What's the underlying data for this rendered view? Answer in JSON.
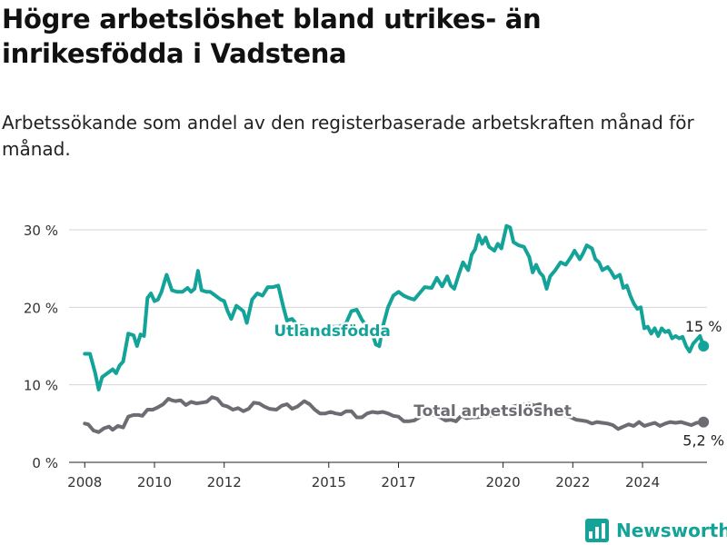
{
  "header": {
    "title": "Högre arbetslöshet bland utrikes- än inrikesfödda i Vadstena",
    "subtitle": "Arbetssökande som andel av den registerbaserade arbetskraften månad för månad."
  },
  "brand": {
    "name": "Newsworthy",
    "icon": "bar-chart-logo-icon",
    "color": "#13a398"
  },
  "chart_data": {
    "type": "line",
    "title": "Högre arbetslöshet bland utrikes- än inrikesfödda i Vadstena",
    "subtitle": "Arbetssökande som andel av den registerbaserade arbetskraften månad för månad.",
    "xlabel": "",
    "ylabel": "",
    "xlim": [
      2007.55,
      2025.85
    ],
    "ylim": [
      0,
      30
    ],
    "y_ticks": [
      0,
      10,
      20,
      30
    ],
    "y_tick_labels": [
      "0 %",
      "10 %",
      "20 %",
      "30 %"
    ],
    "x_ticks": [
      2008,
      2010,
      2012,
      2015,
      2017,
      2020,
      2022,
      2024
    ],
    "x_tick_labels": [
      "2008",
      "2010",
      "2012",
      "2015",
      "2017",
      "2020",
      "2022",
      "2024"
    ],
    "grid": true,
    "legend": "inline labels",
    "series": [
      {
        "name": "Utlandsfödda",
        "color": "#13a398",
        "end_label": "15 %",
        "points": [
          [
            2008.0,
            14.0
          ],
          [
            2008.15,
            14.0
          ],
          [
            2008.3,
            11.5
          ],
          [
            2008.4,
            9.4
          ],
          [
            2008.5,
            11.0
          ],
          [
            2008.65,
            11.5
          ],
          [
            2008.8,
            12.0
          ],
          [
            2008.9,
            11.5
          ],
          [
            2009.0,
            12.5
          ],
          [
            2009.1,
            13.0
          ],
          [
            2009.25,
            16.6
          ],
          [
            2009.4,
            16.4
          ],
          [
            2009.5,
            15.0
          ],
          [
            2009.6,
            16.5
          ],
          [
            2009.7,
            16.3
          ],
          [
            2009.8,
            21.2
          ],
          [
            2009.9,
            21.8
          ],
          [
            2010.0,
            20.8
          ],
          [
            2010.1,
            21.0
          ],
          [
            2010.2,
            22.0
          ],
          [
            2010.3,
            23.5
          ],
          [
            2010.35,
            24.2
          ],
          [
            2010.5,
            22.2
          ],
          [
            2010.65,
            22.0
          ],
          [
            2010.8,
            22.0
          ],
          [
            2010.95,
            22.5
          ],
          [
            2011.05,
            22.0
          ],
          [
            2011.15,
            22.4
          ],
          [
            2011.25,
            24.7
          ],
          [
            2011.35,
            22.2
          ],
          [
            2011.5,
            22.0
          ],
          [
            2011.6,
            22.0
          ],
          [
            2011.75,
            21.5
          ],
          [
            2011.9,
            21.0
          ],
          [
            2012.0,
            20.8
          ],
          [
            2012.1,
            19.5
          ],
          [
            2012.2,
            18.5
          ],
          [
            2012.35,
            20.2
          ],
          [
            2012.55,
            19.5
          ],
          [
            2012.65,
            18.0
          ],
          [
            2012.8,
            21.0
          ],
          [
            2012.95,
            21.8
          ],
          [
            2013.1,
            21.5
          ],
          [
            2013.25,
            22.6
          ],
          [
            2013.4,
            22.6
          ],
          [
            2013.55,
            22.8
          ],
          [
            2013.7,
            20.0
          ],
          [
            2013.8,
            18.3
          ],
          [
            2013.95,
            18.5
          ],
          [
            2014.1,
            17.7
          ],
          [
            2014.3,
            17.5
          ],
          [
            2014.5,
            17.0
          ],
          [
            2014.7,
            16.5
          ],
          [
            2014.9,
            17.0
          ],
          [
            2015.1,
            17.5
          ],
          [
            2015.3,
            17.5
          ],
          [
            2015.5,
            18.0
          ],
          [
            2015.65,
            19.5
          ],
          [
            2015.8,
            19.7
          ],
          [
            2015.95,
            18.4
          ],
          [
            2016.1,
            17.5
          ],
          [
            2016.25,
            16.6
          ],
          [
            2016.35,
            15.2
          ],
          [
            2016.45,
            15.0
          ],
          [
            2016.55,
            17.5
          ],
          [
            2016.7,
            20.0
          ],
          [
            2016.85,
            21.5
          ],
          [
            2017.0,
            22.0
          ],
          [
            2017.15,
            21.5
          ],
          [
            2017.3,
            21.2
          ],
          [
            2017.45,
            21.0
          ],
          [
            2017.6,
            21.8
          ],
          [
            2017.75,
            22.6
          ],
          [
            2017.95,
            22.5
          ],
          [
            2018.1,
            23.8
          ],
          [
            2018.25,
            22.7
          ],
          [
            2018.4,
            24.0
          ],
          [
            2018.5,
            22.8
          ],
          [
            2018.6,
            22.4
          ],
          [
            2018.75,
            24.5
          ],
          [
            2018.85,
            25.8
          ],
          [
            2019.0,
            24.8
          ],
          [
            2019.1,
            26.8
          ],
          [
            2019.2,
            27.5
          ],
          [
            2019.3,
            29.3
          ],
          [
            2019.4,
            28.2
          ],
          [
            2019.5,
            29.0
          ],
          [
            2019.6,
            27.8
          ],
          [
            2019.75,
            27.3
          ],
          [
            2019.85,
            28.2
          ],
          [
            2019.95,
            27.6
          ],
          [
            2020.1,
            30.5
          ],
          [
            2020.2,
            30.3
          ],
          [
            2020.3,
            28.4
          ],
          [
            2020.45,
            28.0
          ],
          [
            2020.6,
            27.8
          ],
          [
            2020.75,
            26.5
          ],
          [
            2020.85,
            24.5
          ],
          [
            2020.95,
            25.5
          ],
          [
            2021.05,
            24.5
          ],
          [
            2021.15,
            24.0
          ],
          [
            2021.25,
            22.4
          ],
          [
            2021.35,
            24.0
          ],
          [
            2021.5,
            24.8
          ],
          [
            2021.65,
            25.8
          ],
          [
            2021.8,
            25.5
          ],
          [
            2021.95,
            26.5
          ],
          [
            2022.05,
            27.3
          ],
          [
            2022.2,
            26.2
          ],
          [
            2022.3,
            27.0
          ],
          [
            2022.4,
            28.0
          ],
          [
            2022.55,
            27.6
          ],
          [
            2022.65,
            26.2
          ],
          [
            2022.75,
            25.8
          ],
          [
            2022.85,
            24.8
          ],
          [
            2023.0,
            25.2
          ],
          [
            2023.1,
            24.6
          ],
          [
            2023.2,
            23.8
          ],
          [
            2023.35,
            24.2
          ],
          [
            2023.45,
            22.5
          ],
          [
            2023.55,
            22.8
          ],
          [
            2023.65,
            21.5
          ],
          [
            2023.75,
            20.5
          ],
          [
            2023.85,
            19.8
          ],
          [
            2023.95,
            20.0
          ],
          [
            2024.05,
            17.3
          ],
          [
            2024.15,
            17.5
          ],
          [
            2024.25,
            16.6
          ],
          [
            2024.35,
            17.3
          ],
          [
            2024.45,
            16.3
          ],
          [
            2024.55,
            17.3
          ],
          [
            2024.65,
            16.8
          ],
          [
            2024.75,
            17.0
          ],
          [
            2024.85,
            16.0
          ],
          [
            2024.95,
            16.3
          ],
          [
            2025.05,
            16.0
          ],
          [
            2025.15,
            16.2
          ],
          [
            2025.25,
            15.0
          ],
          [
            2025.35,
            14.3
          ],
          [
            2025.45,
            15.3
          ],
          [
            2025.55,
            15.8
          ],
          [
            2025.65,
            16.3
          ],
          [
            2025.75,
            15.0
          ]
        ]
      },
      {
        "name": "Total arbetslöshet",
        "color": "#6e6c72",
        "end_label": "5,2 %",
        "points": [
          [
            2008.0,
            5.0
          ],
          [
            2008.1,
            4.9
          ],
          [
            2008.25,
            4.1
          ],
          [
            2008.4,
            3.9
          ],
          [
            2008.55,
            4.4
          ],
          [
            2008.7,
            4.6
          ],
          [
            2008.8,
            4.2
          ],
          [
            2008.95,
            4.7
          ],
          [
            2009.1,
            4.5
          ],
          [
            2009.25,
            5.9
          ],
          [
            2009.4,
            6.1
          ],
          [
            2009.55,
            6.1
          ],
          [
            2009.65,
            6.0
          ],
          [
            2009.8,
            6.8
          ],
          [
            2009.95,
            6.8
          ],
          [
            2010.1,
            7.1
          ],
          [
            2010.25,
            7.5
          ],
          [
            2010.4,
            8.2
          ],
          [
            2010.5,
            8.0
          ],
          [
            2010.6,
            7.9
          ],
          [
            2010.75,
            8.0
          ],
          [
            2010.9,
            7.4
          ],
          [
            2011.05,
            7.8
          ],
          [
            2011.2,
            7.6
          ],
          [
            2011.35,
            7.7
          ],
          [
            2011.5,
            7.8
          ],
          [
            2011.65,
            8.4
          ],
          [
            2011.8,
            8.2
          ],
          [
            2011.95,
            7.4
          ],
          [
            2012.1,
            7.2
          ],
          [
            2012.25,
            6.8
          ],
          [
            2012.4,
            7.0
          ],
          [
            2012.55,
            6.6
          ],
          [
            2012.7,
            6.9
          ],
          [
            2012.85,
            7.7
          ],
          [
            2013.0,
            7.6
          ],
          [
            2013.15,
            7.2
          ],
          [
            2013.3,
            6.9
          ],
          [
            2013.5,
            6.8
          ],
          [
            2013.65,
            7.3
          ],
          [
            2013.8,
            7.5
          ],
          [
            2013.95,
            6.9
          ],
          [
            2014.1,
            7.2
          ],
          [
            2014.3,
            7.9
          ],
          [
            2014.45,
            7.5
          ],
          [
            2014.6,
            6.8
          ],
          [
            2014.75,
            6.3
          ],
          [
            2014.9,
            6.3
          ],
          [
            2015.05,
            6.5
          ],
          [
            2015.2,
            6.3
          ],
          [
            2015.35,
            6.2
          ],
          [
            2015.5,
            6.6
          ],
          [
            2015.65,
            6.6
          ],
          [
            2015.8,
            5.8
          ],
          [
            2015.95,
            5.8
          ],
          [
            2016.1,
            6.3
          ],
          [
            2016.25,
            6.5
          ],
          [
            2016.4,
            6.4
          ],
          [
            2016.55,
            6.5
          ],
          [
            2016.7,
            6.3
          ],
          [
            2016.85,
            6.0
          ],
          [
            2017.0,
            5.9
          ],
          [
            2017.15,
            5.3
          ],
          [
            2017.3,
            5.3
          ],
          [
            2017.45,
            5.4
          ],
          [
            2017.6,
            5.8
          ],
          [
            2017.75,
            6.3
          ],
          [
            2017.9,
            6.3
          ],
          [
            2018.05,
            6.0
          ],
          [
            2018.2,
            5.8
          ],
          [
            2018.35,
            5.4
          ],
          [
            2018.5,
            5.5
          ],
          [
            2018.65,
            5.3
          ],
          [
            2018.8,
            6.0
          ],
          [
            2018.95,
            5.7
          ],
          [
            2019.1,
            5.8
          ],
          [
            2019.25,
            5.8
          ],
          [
            2019.4,
            5.9
          ],
          [
            2019.55,
            6.1
          ],
          [
            2019.7,
            6.0
          ],
          [
            2019.85,
            6.2
          ],
          [
            2020.0,
            6.6
          ],
          [
            2020.15,
            6.8
          ],
          [
            2020.3,
            7.2
          ],
          [
            2020.45,
            7.4
          ],
          [
            2020.6,
            7.5
          ],
          [
            2020.75,
            7.6
          ],
          [
            2020.9,
            7.3
          ],
          [
            2021.05,
            7.5
          ],
          [
            2021.2,
            7.3
          ],
          [
            2021.35,
            7.0
          ],
          [
            2021.5,
            6.7
          ],
          [
            2021.65,
            6.4
          ],
          [
            2021.8,
            6.0
          ],
          [
            2021.95,
            5.8
          ],
          [
            2022.1,
            5.5
          ],
          [
            2022.25,
            5.4
          ],
          [
            2022.4,
            5.3
          ],
          [
            2022.55,
            5.0
          ],
          [
            2022.7,
            5.2
          ],
          [
            2022.85,
            5.1
          ],
          [
            2023.0,
            5.0
          ],
          [
            2023.15,
            4.8
          ],
          [
            2023.3,
            4.3
          ],
          [
            2023.45,
            4.6
          ],
          [
            2023.6,
            4.9
          ],
          [
            2023.75,
            4.7
          ],
          [
            2023.9,
            5.2
          ],
          [
            2024.05,
            4.7
          ],
          [
            2024.2,
            4.9
          ],
          [
            2024.35,
            5.1
          ],
          [
            2024.5,
            4.7
          ],
          [
            2024.65,
            5.0
          ],
          [
            2024.8,
            5.2
          ],
          [
            2024.95,
            5.1
          ],
          [
            2025.1,
            5.2
          ],
          [
            2025.25,
            5.0
          ],
          [
            2025.4,
            4.8
          ],
          [
            2025.55,
            5.1
          ],
          [
            2025.75,
            5.2
          ]
        ]
      }
    ]
  }
}
